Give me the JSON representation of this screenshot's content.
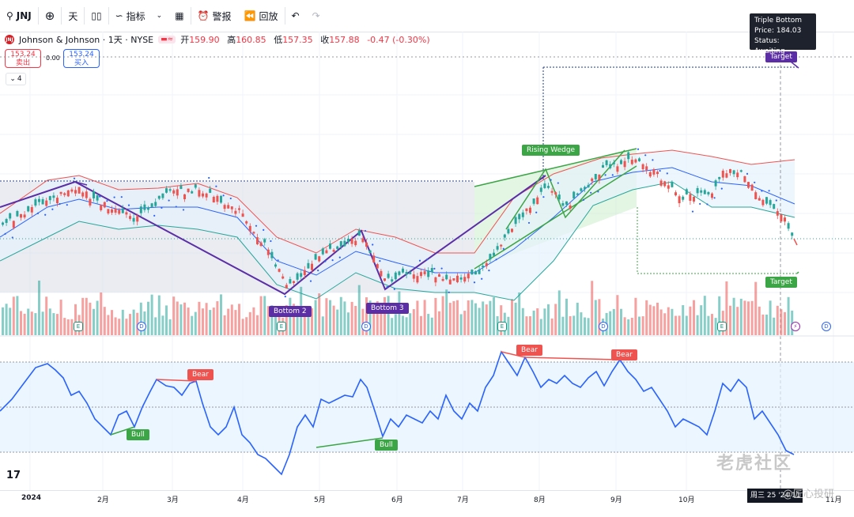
{
  "toolbar": {
    "symbol": "JNJ",
    "interval": "天",
    "indicators_label": "指标",
    "alert_label": "警报",
    "replay_label": "回放"
  },
  "info": {
    "title": "Johnson & Johnson · 1天 · NYSE",
    "logo_text": "JNJ",
    "open_label": "开",
    "open": "159.90",
    "high_label": "高",
    "high": "160.85",
    "low_label": "低",
    "low": "157.35",
    "close_label": "收",
    "close": "157.88",
    "change": "-0.47 (-0.30%)"
  },
  "trade": {
    "sell_price": "153.24",
    "sell_label": "卖出",
    "spread": "0.00",
    "buy_price": "153.24",
    "buy_label": "买入"
  },
  "indicator_count": "4",
  "tooltip": {
    "title": "Triple Bottom",
    "price": "Price: 184.03",
    "status": "Status: Awaiting"
  },
  "annotations": {
    "bottom2": "Bottom 2",
    "bottom3": "Bottom 3",
    "rising_wedge": "Rising Wedge",
    "target_top": "Target",
    "target_bottom": "Target",
    "bear1": "Bear",
    "bear2": "Bear",
    "bear3": "Bear",
    "bull1": "Bull",
    "bull2": "Bull"
  },
  "events": [
    {
      "type": "E",
      "name": "earnings"
    },
    {
      "type": "D",
      "name": "dividend"
    },
    {
      "type": "E",
      "name": "earnings"
    },
    {
      "type": "D",
      "name": "dividend"
    },
    {
      "type": "E",
      "name": "earnings"
    },
    {
      "type": "D",
      "name": "dividend"
    },
    {
      "type": "E",
      "name": "earnings"
    },
    {
      "type": "⚡",
      "name": "split"
    },
    {
      "type": "D",
      "name": "dividend"
    }
  ],
  "xaxis": {
    "labels": [
      "2024",
      "2月",
      "3月",
      "4月",
      "5月",
      "6月",
      "7月",
      "8月",
      "9月",
      "10月",
      "11月"
    ],
    "date_badge": "周三 25 '24 11 '24"
  },
  "watermark": "老虎社区",
  "watermark2": "@匠心投研",
  "tv_logo": "17",
  "colors": {
    "up": "#26a69a",
    "down": "#ef5350",
    "pattern": "#5b2ea6",
    "wedge": "#3ca545",
    "rsi": "#2962ff"
  }
}
